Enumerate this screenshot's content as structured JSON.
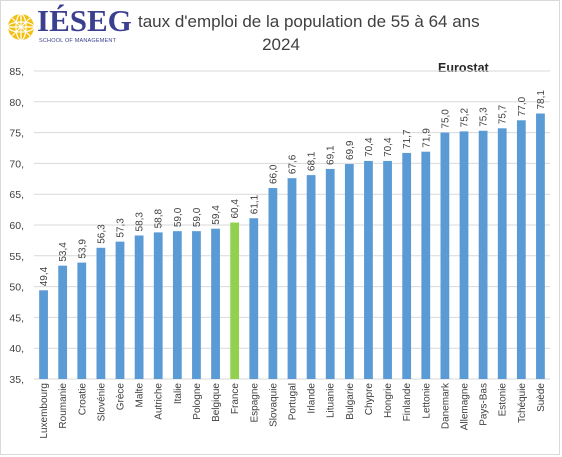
{
  "header": {
    "logo_name": "IÉSEG",
    "logo_tagline": "SCHOOL OF MANAGEMENT",
    "title": "taux d'emploi de la population de 55 à 64 ans",
    "subtitle": "2024",
    "source": "Eurostat"
  },
  "colors": {
    "bar": "#5b9bd5",
    "highlight": "#92d050",
    "grid": "#d9d9d9",
    "axis_text": "#404040",
    "logo_blue": "#3b3f8f",
    "logo_yellow": "#f3c012"
  },
  "chart_data": {
    "type": "bar",
    "title": "taux d'emploi de la population de 55 à 64 ans",
    "subtitle": "2024",
    "source": "Eurostat",
    "categories": [
      "Luxembourg",
      "Roumanie",
      "Croatie",
      "Slovénie",
      "Grèce",
      "Malte",
      "Autriche",
      "Italie",
      "Pologne",
      "Belgique",
      "France",
      "Espagne",
      "Slovaquie",
      "Portugal",
      "Irlande",
      "Lituanie",
      "Bulgarie",
      "Chypre",
      "Hongrie",
      "Finlande",
      "Lettonie",
      "Danemark",
      "Allemagne",
      "Pays-Bas",
      "Estonie",
      "Tchéquie",
      "Suède"
    ],
    "values": [
      49.4,
      53.4,
      53.9,
      56.3,
      57.3,
      58.3,
      58.8,
      59.0,
      59.0,
      59.4,
      60.4,
      61.1,
      66.0,
      67.6,
      68.1,
      69.1,
      69.9,
      70.4,
      70.4,
      71.7,
      71.9,
      75.0,
      75.2,
      75.3,
      75.7,
      77.0,
      78.1
    ],
    "value_labels": [
      "49,4",
      "53,4",
      "53,9",
      "56,3",
      "57,3",
      "58,3",
      "58,8",
      "59,0",
      "59,0",
      "59,4",
      "60,4",
      "61,1",
      "66,0",
      "67,6",
      "68,1",
      "69,1",
      "69,9",
      "70,4",
      "70,4",
      "71,7",
      "71,9",
      "75,0",
      "75,2",
      "75,3",
      "75,7",
      "77,0",
      "78,1"
    ],
    "highlight_category": "France",
    "ylim": [
      35,
      85
    ],
    "yticks": [
      35,
      40,
      45,
      50,
      55,
      60,
      65,
      70,
      75,
      80,
      85
    ],
    "ytick_labels": [
      "35,",
      "40,",
      "45,",
      "50,",
      "55,",
      "60,",
      "65,",
      "70,",
      "75,",
      "80,",
      "85,"
    ],
    "grid": true,
    "legend": "none"
  }
}
